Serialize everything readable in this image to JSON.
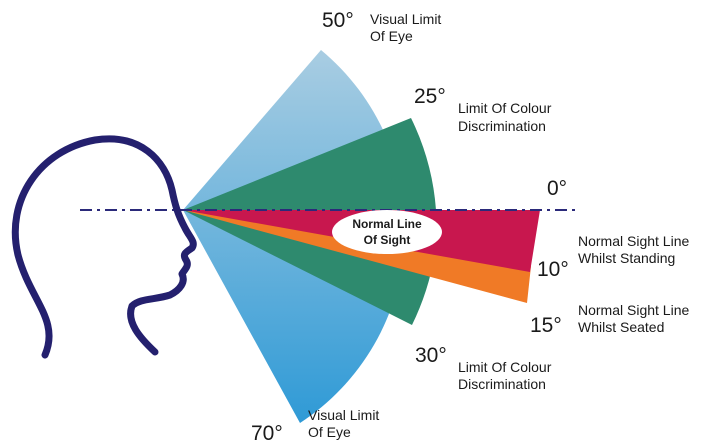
{
  "angles": [
    {
      "degree": "50°",
      "label": [
        "Visual Limit",
        "Of Eye"
      ]
    },
    {
      "degree": "25°",
      "label": [
        "Limit Of Colour",
        "Discrimination"
      ]
    },
    {
      "degree": "0°"
    },
    {
      "degree": "10°",
      "label": [
        "Normal Sight Line",
        "Whilst Standing"
      ]
    },
    {
      "degree": "15°",
      "label": [
        "Normal Sight Line",
        "Whilst Seated"
      ]
    },
    {
      "degree": "30°",
      "label": [
        "Limit Of Colour",
        "Discrimination"
      ]
    },
    {
      "degree": "70°",
      "label": [
        "Visual Limit",
        "Of Eye"
      ]
    }
  ],
  "center_label": [
    "Normal Line",
    "Of Sight"
  ]
}
